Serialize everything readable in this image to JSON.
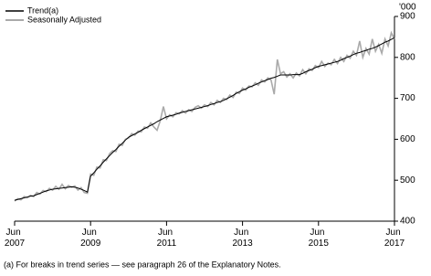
{
  "chart_data": {
    "type": "line",
    "unit_label": "'000",
    "footnote": "(a) For breaks in trend series — see paragraph 26 of the Explanatory Notes.",
    "categories": [
      "Jun 2007",
      null,
      null,
      null,
      null,
      null,
      null,
      null,
      null,
      null,
      null,
      null,
      null,
      null,
      null,
      null,
      null,
      null,
      null,
      null,
      null,
      null,
      null,
      null,
      "Jun 2009",
      null,
      null,
      null,
      null,
      null,
      null,
      null,
      null,
      null,
      null,
      null,
      null,
      null,
      null,
      null,
      null,
      null,
      null,
      null,
      null,
      null,
      null,
      null,
      "Jun 2011",
      null,
      null,
      null,
      null,
      null,
      null,
      null,
      null,
      null,
      null,
      null,
      null,
      null,
      null,
      null,
      null,
      null,
      null,
      null,
      null,
      null,
      null,
      null,
      "Jun 2013",
      null,
      null,
      null,
      null,
      null,
      null,
      null,
      null,
      null,
      null,
      null,
      null,
      null,
      null,
      null,
      null,
      null,
      null,
      null,
      null,
      null,
      null,
      null,
      "Jun 2015",
      null,
      null,
      null,
      null,
      null,
      null,
      null,
      null,
      null,
      null,
      null,
      null,
      null,
      null,
      null,
      null,
      null,
      null,
      null,
      null,
      null,
      null,
      null,
      "Jun 2017"
    ],
    "series": [
      {
        "name": "Seasonally Adjusted",
        "color": "#aaaaaa",
        "width": 1.6,
        "values": [
          449,
          455,
          452,
          460,
          457,
          463,
          460,
          470,
          466,
          475,
          472,
          480,
          476,
          485,
          478,
          490,
          479,
          487,
          483,
          486,
          476,
          482,
          470,
          468,
          515,
          512,
          532,
          530,
          550,
          548,
          565,
          572,
          570,
          588,
          585,
          600,
          603,
          614,
          610,
          620,
          618,
          630,
          627,
          640,
          630,
          622,
          645,
          680,
          650,
          660,
          655,
          665,
          662,
          670,
          664,
          672,
          668,
          678,
          682,
          676,
          684,
          680,
          690,
          684,
          695,
          690,
          700,
          697,
          708,
          702,
          715,
          712,
          725,
          720,
          730,
          728,
          738,
          732,
          745,
          740,
          750,
          745,
          710,
          795,
          760,
          765,
          752,
          760,
          750,
          762,
          755,
          770,
          760,
          772,
          768,
          780,
          775,
          790,
          778,
          786,
          782,
          795,
          785,
          800,
          790,
          805,
          798,
          815,
          805,
          840,
          800,
          822,
          808,
          845,
          815,
          832,
          810,
          845,
          828,
          860,
          845
        ]
      },
      {
        "name": "Trend(a)",
        "color": "#000000",
        "width": 1,
        "values": [
          451,
          453,
          455,
          457,
          459,
          461,
          462,
          465,
          468,
          471,
          474,
          476,
          478,
          479,
          480,
          481,
          482,
          483,
          484,
          483,
          481,
          478,
          475,
          471,
          510,
          518,
          527,
          535,
          544,
          552,
          560,
          568,
          575,
          583,
          590,
          598,
          605,
          609,
          613,
          617,
          622,
          626,
          630,
          634,
          638,
          643,
          647,
          651,
          655,
          657,
          659,
          661,
          664,
          666,
          668,
          670,
          672,
          674,
          676,
          678,
          680,
          682,
          685,
          687,
          690,
          692,
          695,
          699,
          703,
          707,
          712,
          716,
          720,
          723,
          727,
          730,
          733,
          737,
          740,
          743,
          746,
          749,
          751,
          754,
          757,
          757,
          757,
          757,
          758,
          758,
          758,
          761,
          765,
          768,
          771,
          775,
          778,
          780,
          782,
          784,
          786,
          788,
          790,
          793,
          797,
          800,
          803,
          807,
          810,
          812,
          815,
          817,
          820,
          822,
          825,
          829,
          833,
          837,
          840,
          844,
          848
        ]
      }
    ],
    "ylim": [
      400,
      900
    ],
    "yticks": [
      400,
      500,
      600,
      700,
      800,
      900
    ]
  }
}
